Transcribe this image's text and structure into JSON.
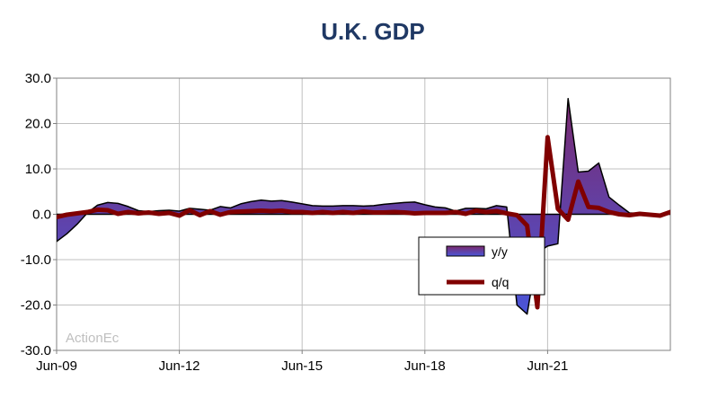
{
  "chart_data": {
    "type": "area",
    "title": "U.K. GDP",
    "watermark": "ActionEc",
    "xlabel": "",
    "ylabel": "",
    "ylim": [
      -30,
      30
    ],
    "yticks": [
      30,
      20,
      10,
      0,
      -10,
      -20,
      -30
    ],
    "ytick_labels": [
      "30.0",
      "20.0",
      "10.0",
      "0.0",
      "-10.0",
      "-20.0",
      "-30.0"
    ],
    "xlim": [
      "2009-06",
      "2024-06"
    ],
    "xticks": [
      "2009-06",
      "2012-06",
      "2015-06",
      "2018-06",
      "2021-06"
    ],
    "xtick_labels": [
      "Jun-09",
      "Jun-12",
      "Jun-15",
      "Jun-18",
      "Jun-21"
    ],
    "grid": true,
    "legend_position": "lower-right",
    "series": [
      {
        "name": "y/y",
        "type": "area",
        "colors": {
          "fill_top": "#7b2a6e",
          "fill_bottom": "#4a55d8",
          "outline": "#000000"
        },
        "points": [
          [
            "2009-06",
            -6.0
          ],
          [
            "2009-09",
            -4.3
          ],
          [
            "2009-12",
            -2.2
          ],
          [
            "2010-03",
            0.3
          ],
          [
            "2010-06",
            2.0
          ],
          [
            "2010-09",
            2.6
          ],
          [
            "2010-12",
            2.4
          ],
          [
            "2011-03",
            1.7
          ],
          [
            "2011-06",
            0.8
          ],
          [
            "2011-09",
            0.6
          ],
          [
            "2011-12",
            0.8
          ],
          [
            "2012-03",
            0.9
          ],
          [
            "2012-06",
            0.7
          ],
          [
            "2012-09",
            1.3
          ],
          [
            "2012-12",
            1.1
          ],
          [
            "2013-03",
            0.9
          ],
          [
            "2013-06",
            1.7
          ],
          [
            "2013-09",
            1.4
          ],
          [
            "2013-12",
            2.3
          ],
          [
            "2014-03",
            2.8
          ],
          [
            "2014-06",
            3.1
          ],
          [
            "2014-09",
            2.9
          ],
          [
            "2014-12",
            3.0
          ],
          [
            "2015-03",
            2.7
          ],
          [
            "2015-06",
            2.3
          ],
          [
            "2015-09",
            1.9
          ],
          [
            "2015-12",
            1.8
          ],
          [
            "2016-03",
            1.8
          ],
          [
            "2016-06",
            1.9
          ],
          [
            "2016-09",
            1.9
          ],
          [
            "2016-12",
            1.8
          ],
          [
            "2017-03",
            1.9
          ],
          [
            "2017-06",
            2.2
          ],
          [
            "2017-09",
            2.4
          ],
          [
            "2017-12",
            2.6
          ],
          [
            "2018-03",
            2.7
          ],
          [
            "2018-06",
            2.1
          ],
          [
            "2018-09",
            1.6
          ],
          [
            "2018-12",
            1.4
          ],
          [
            "2019-03",
            0.7
          ],
          [
            "2019-06",
            1.3
          ],
          [
            "2019-09",
            1.3
          ],
          [
            "2019-12",
            1.2
          ],
          [
            "2020-03",
            1.9
          ],
          [
            "2020-06",
            1.6
          ],
          [
            "2020-09",
            -20.0
          ],
          [
            "2020-12",
            -22.0
          ],
          [
            "2021-03",
            -8.5
          ],
          [
            "2021-06",
            -7.0
          ],
          [
            "2021-09",
            -6.5
          ],
          [
            "2021-12",
            25.5
          ],
          [
            "2022-03",
            9.3
          ],
          [
            "2022-06",
            9.5
          ],
          [
            "2022-09",
            11.3
          ],
          [
            "2022-12",
            3.8
          ],
          [
            "2023-03",
            2.0
          ],
          [
            "2023-06",
            0.3
          ],
          [
            "2023-09",
            0.2
          ],
          [
            "2023-12",
            0.0
          ],
          [
            "2024-03",
            -0.2
          ],
          [
            "2024-06",
            0.3
          ]
        ]
      },
      {
        "name": "q/q",
        "type": "line",
        "colors": {
          "line": "#800000"
        },
        "points": [
          [
            "2009-06",
            -0.6
          ],
          [
            "2009-09",
            -0.1
          ],
          [
            "2009-12",
            0.2
          ],
          [
            "2010-03",
            0.5
          ],
          [
            "2010-06",
            1.0
          ],
          [
            "2010-09",
            0.9
          ],
          [
            "2010-12",
            0.1
          ],
          [
            "2011-03",
            0.5
          ],
          [
            "2011-06",
            0.2
          ],
          [
            "2011-09",
            0.4
          ],
          [
            "2011-12",
            0.1
          ],
          [
            "2012-03",
            0.3
          ],
          [
            "2012-06",
            -0.3
          ],
          [
            "2012-09",
            0.9
          ],
          [
            "2012-12",
            -0.2
          ],
          [
            "2013-03",
            0.7
          ],
          [
            "2013-06",
            -0.1
          ],
          [
            "2013-09",
            0.5
          ],
          [
            "2013-12",
            0.6
          ],
          [
            "2014-03",
            0.7
          ],
          [
            "2014-06",
            0.8
          ],
          [
            "2014-09",
            0.7
          ],
          [
            "2014-12",
            0.8
          ],
          [
            "2015-03",
            0.5
          ],
          [
            "2015-06",
            0.5
          ],
          [
            "2015-09",
            0.3
          ],
          [
            "2015-12",
            0.5
          ],
          [
            "2016-03",
            0.3
          ],
          [
            "2016-06",
            0.5
          ],
          [
            "2016-09",
            0.3
          ],
          [
            "2016-12",
            0.6
          ],
          [
            "2017-03",
            0.4
          ],
          [
            "2017-06",
            0.4
          ],
          [
            "2017-09",
            0.5
          ],
          [
            "2017-12",
            0.4
          ],
          [
            "2018-03",
            0.2
          ],
          [
            "2018-06",
            0.3
          ],
          [
            "2018-09",
            0.3
          ],
          [
            "2018-12",
            0.3
          ],
          [
            "2019-03",
            0.5
          ],
          [
            "2019-06",
            0.1
          ],
          [
            "2019-09",
            0.8
          ],
          [
            "2019-12",
            0.5
          ],
          [
            "2020-03",
            0.7
          ],
          [
            "2020-06",
            0.2
          ],
          [
            "2020-09",
            -0.2
          ],
          [
            "2020-12",
            -2.5
          ],
          [
            "2021-03",
            -20.5
          ],
          [
            "2021-06",
            17.0
          ],
          [
            "2021-09",
            1.2
          ],
          [
            "2021-12",
            -1.2
          ],
          [
            "2022-03",
            7.2
          ],
          [
            "2022-06",
            1.6
          ],
          [
            "2022-09",
            1.4
          ],
          [
            "2022-12",
            0.5
          ],
          [
            "2023-03",
            0.0
          ],
          [
            "2023-06",
            -0.2
          ],
          [
            "2023-09",
            0.1
          ],
          [
            "2023-12",
            -0.1
          ],
          [
            "2024-03",
            -0.3
          ],
          [
            "2024-06",
            0.5
          ]
        ]
      }
    ]
  }
}
